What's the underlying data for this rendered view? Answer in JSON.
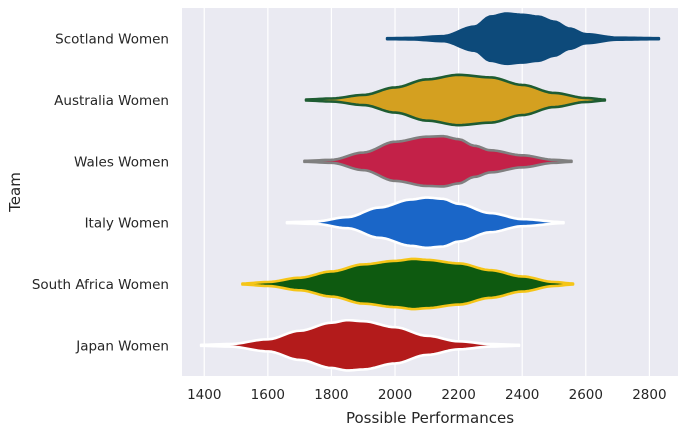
{
  "chart_data": {
    "type": "violin",
    "orientation": "horizontal",
    "xlabel": "Possible Performances",
    "ylabel": "Team",
    "xlim": [
      1330,
      2890
    ],
    "xticks": [
      1400,
      1600,
      1800,
      2000,
      2200,
      2400,
      2600,
      2800
    ],
    "grid": true,
    "background": "#eaeaf2",
    "categories": [
      "Scotland Women",
      "Australia Women",
      "Wales Women",
      "Italy Women",
      "South Africa Women",
      "Japan Women"
    ],
    "series": [
      {
        "team": "Scotland Women",
        "fill": "#0d4a7a",
        "edge": "#0d4a7a",
        "range": [
          1975,
          2830
        ],
        "density": [
          [
            1975,
            0.02
          ],
          [
            2050,
            0.03
          ],
          [
            2150,
            0.1
          ],
          [
            2250,
            0.48
          ],
          [
            2300,
            0.88
          ],
          [
            2350,
            1.0
          ],
          [
            2400,
            0.95
          ],
          [
            2450,
            0.88
          ],
          [
            2500,
            0.68
          ],
          [
            2550,
            0.4
          ],
          [
            2600,
            0.18
          ],
          [
            2700,
            0.04
          ],
          [
            2830,
            0.02
          ]
        ]
      },
      {
        "team": "Australia Women",
        "fill": "#d4a020",
        "edge": "#1e5c32",
        "range": [
          1720,
          2660
        ],
        "density": [
          [
            1720,
            0.02
          ],
          [
            1800,
            0.06
          ],
          [
            1900,
            0.2
          ],
          [
            2000,
            0.5
          ],
          [
            2100,
            0.82
          ],
          [
            2200,
            1.0
          ],
          [
            2300,
            0.9
          ],
          [
            2400,
            0.6
          ],
          [
            2500,
            0.28
          ],
          [
            2600,
            0.08
          ],
          [
            2660,
            0.02
          ]
        ]
      },
      {
        "team": "Wales Women",
        "fill": "#c32148",
        "edge": "#808080",
        "range": [
          1715,
          2555
        ],
        "density": [
          [
            1715,
            0.02
          ],
          [
            1800,
            0.06
          ],
          [
            1900,
            0.35
          ],
          [
            2000,
            0.78
          ],
          [
            2100,
            0.98
          ],
          [
            2150,
            1.0
          ],
          [
            2200,
            0.88
          ],
          [
            2250,
            0.62
          ],
          [
            2300,
            0.44
          ],
          [
            2400,
            0.24
          ],
          [
            2500,
            0.06
          ],
          [
            2555,
            0.02
          ]
        ]
      },
      {
        "team": "Italy Women",
        "fill": "#1a66c8",
        "edge": "#ffffff",
        "range": [
          1660,
          2530
        ],
        "density": [
          [
            1660,
            0.02
          ],
          [
            1750,
            0.05
          ],
          [
            1850,
            0.22
          ],
          [
            1950,
            0.6
          ],
          [
            2050,
            0.92
          ],
          [
            2100,
            1.0
          ],
          [
            2150,
            0.95
          ],
          [
            2200,
            0.75
          ],
          [
            2300,
            0.38
          ],
          [
            2400,
            0.14
          ],
          [
            2530,
            0.02
          ]
        ]
      },
      {
        "team": "South Africa Women",
        "fill": "#0e5a10",
        "edge": "#f5c518",
        "range": [
          1520,
          2560
        ],
        "density": [
          [
            1520,
            0.02
          ],
          [
            1600,
            0.08
          ],
          [
            1700,
            0.25
          ],
          [
            1800,
            0.5
          ],
          [
            1900,
            0.78
          ],
          [
            2000,
            0.92
          ],
          [
            2060,
            1.0
          ],
          [
            2100,
            0.96
          ],
          [
            2200,
            0.82
          ],
          [
            2300,
            0.55
          ],
          [
            2400,
            0.3
          ],
          [
            2500,
            0.08
          ],
          [
            2560,
            0.02
          ]
        ]
      },
      {
        "team": "Japan Women",
        "fill": "#b31b1b",
        "edge": "#ffffff",
        "range": [
          1390,
          2390
        ],
        "density": [
          [
            1390,
            0.02
          ],
          [
            1480,
            0.05
          ],
          [
            1600,
            0.24
          ],
          [
            1700,
            0.58
          ],
          [
            1800,
            0.9
          ],
          [
            1850,
            1.0
          ],
          [
            1900,
            0.96
          ],
          [
            2000,
            0.72
          ],
          [
            2100,
            0.38
          ],
          [
            2200,
            0.16
          ],
          [
            2300,
            0.05
          ],
          [
            2390,
            0.02
          ]
        ]
      }
    ]
  }
}
